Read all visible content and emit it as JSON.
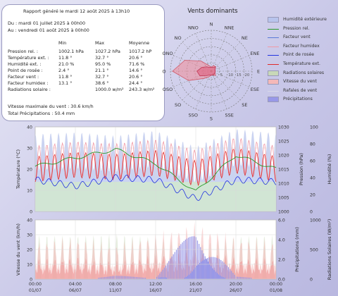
{
  "report": {
    "title": "Rapport généré le mardi 12 août 2025 à 13h10",
    "from": "Du : mardi 01 juillet 2025 à 00h00",
    "to": "Au : vendredi 01 août 2025 à 00h00",
    "col_min": "Min",
    "col_max": "Max",
    "col_avg": "Moyenne",
    "rows": [
      {
        "label": "Pression rel. :",
        "min": "1002.1 hPa",
        "max": "1027.2 hPa",
        "avg": "1017.2 hP"
      },
      {
        "label": "Température ext. :",
        "min": "11.8 °",
        "max": "32.7 °",
        "avg": "20.6 °"
      },
      {
        "label": "Humidité ext. :",
        "min": "21.0 %",
        "max": "95.0 %",
        "avg": "71.6 %"
      },
      {
        "label": "Point de rosée :",
        "min": "2.4 °",
        "max": "21.1 °",
        "avg": "14.6 °"
      },
      {
        "label": "Facteur vent :",
        "min": "11.8 °",
        "max": "32.7 °",
        "avg": "20.6 °"
      },
      {
        "label": "Facteur humidex :",
        "min": "13.1 °",
        "max": "38.6 °",
        "avg": "24.4 °"
      },
      {
        "label": "Radiations solaire :",
        "min": "",
        "max": "1000.0 w/m²",
        "avg": "243.3 w/m²"
      }
    ],
    "max_wind": "Vitesse maximale du vent : 30.6 km/h",
    "total_precip": "Total Précipitations : 50.4 mm"
  },
  "wind_rose": {
    "title": "Vents dominants",
    "directions": [
      "N",
      "NNE",
      "NE",
      "ENE",
      "E",
      "ESE",
      "SE",
      "SSE",
      "S",
      "SSO",
      "SO",
      "OSO",
      "O",
      "ONO",
      "NO",
      "NNO"
    ],
    "scale_labels": [
      "0",
      "5",
      "10",
      "15",
      "20"
    ],
    "frequency": [
      2,
      3,
      3,
      2,
      2,
      2,
      3,
      2,
      2,
      3,
      5,
      12,
      19,
      14,
      7,
      3
    ],
    "speed": [
      2,
      2,
      3,
      2,
      2,
      2,
      2,
      2,
      2,
      2,
      3,
      6,
      7,
      5,
      3,
      2
    ]
  },
  "legend": [
    {
      "label": "Humidité extérieure",
      "color": "#b8c4ec",
      "kind": "fill"
    },
    {
      "label": "Pression rel.",
      "color": "#2a9a2a",
      "kind": "line"
    },
    {
      "label": "Facteur vent",
      "color": "#5a7ad8",
      "kind": "line"
    },
    {
      "label": "Facteur humidex",
      "color": "#f09aa6",
      "kind": "line"
    },
    {
      "label": "Point de rosée",
      "color": "#2233e0",
      "kind": "line"
    },
    {
      "label": "Température ext.",
      "color": "#e02a2a",
      "kind": "line"
    },
    {
      "label": "Radiations solaires",
      "color": "#c8d8b8",
      "kind": "fill"
    },
    {
      "label": "Vitesse du vent",
      "color": "#f4b8b8",
      "kind": "fill"
    },
    {
      "label": "Rafales de vent",
      "color": "#d8d8e8",
      "kind": "line"
    },
    {
      "label": "Précipitations",
      "color": "#9898e8",
      "kind": "fill"
    }
  ],
  "chart_top": {
    "ylabel_left": "Température (°C)",
    "ylabel_pressure": "Pression (hPa)",
    "ylabel_humidity": "Humidité (%)",
    "y_left_ticks": [
      "0",
      "10",
      "20",
      "30",
      "40"
    ],
    "y_pressure_ticks": [
      "1000",
      "1005",
      "1010",
      "1015",
      "1020",
      "1025",
      "1030"
    ],
    "y_humidity_ticks": [
      "0",
      "20",
      "40",
      "60",
      "80",
      "100"
    ]
  },
  "chart_bottom": {
    "ylabel_left": "Vitesse du vent (km/h)",
    "ylabel_precip": "Précipitations (mm)",
    "ylabel_rad": "Radiations Solaires (W/m²)",
    "y_left_ticks": [
      "0",
      "10",
      "20",
      "30",
      "40"
    ],
    "y_precip_ticks": [
      "0.0",
      "2.0",
      "4.0",
      "6.0"
    ],
    "y_rad_ticks": [
      "0",
      "500",
      "1000"
    ]
  },
  "x_axis": {
    "times": [
      "00:00",
      "04:00",
      "08:00",
      "12:00",
      "16:00",
      "20:00",
      "00:00"
    ],
    "dates": [
      "01/07",
      "06/07",
      "11/07",
      "16/07",
      "21/07",
      "26/07",
      "01/08"
    ]
  },
  "chart_data": [
    {
      "type": "line",
      "title": "",
      "xlabel": "",
      "ylabel": "Température (°C)",
      "ylim": [
        0,
        40
      ],
      "x": [
        "01/07",
        "06/07",
        "11/07",
        "16/07",
        "21/07",
        "26/07",
        "01/08"
      ],
      "series": [
        {
          "name": "Température ext.",
          "values": [
            20,
            22,
            21,
            23,
            18,
            24,
            20
          ]
        },
        {
          "name": "Point de rosée",
          "values": [
            15,
            12,
            16,
            15,
            6,
            15,
            14
          ]
        },
        {
          "name": "Pression rel.",
          "unit": "hPa",
          "values": [
            1016,
            1019,
            1022,
            1017,
            1007,
            1020,
            1015
          ]
        },
        {
          "name": "Humidité extérieure",
          "unit": "%",
          "values": [
            70,
            72,
            68,
            74,
            55,
            76,
            71
          ]
        }
      ]
    },
    {
      "type": "area",
      "title": "",
      "xlabel": "",
      "ylabel": "Vitesse du vent (km/h)",
      "ylim": [
        0,
        40
      ],
      "x": [
        "01/07",
        "06/07",
        "11/07",
        "16/07",
        "21/07",
        "26/07",
        "01/08"
      ],
      "series": [
        {
          "name": "Vitesse du vent",
          "values": [
            8,
            9,
            7,
            10,
            12,
            9,
            8
          ]
        },
        {
          "name": "Rafales de vent",
          "values": [
            20,
            22,
            18,
            24,
            30,
            22,
            20
          ]
        },
        {
          "name": "Précipitations",
          "unit": "mm",
          "values": [
            0,
            0,
            0.4,
            0.2,
            6.5,
            0.3,
            0
          ]
        },
        {
          "name": "Radiations solaires",
          "unit": "W/m²",
          "values": [
            900,
            880,
            920,
            850,
            700,
            870,
            900
          ]
        }
      ]
    }
  ]
}
